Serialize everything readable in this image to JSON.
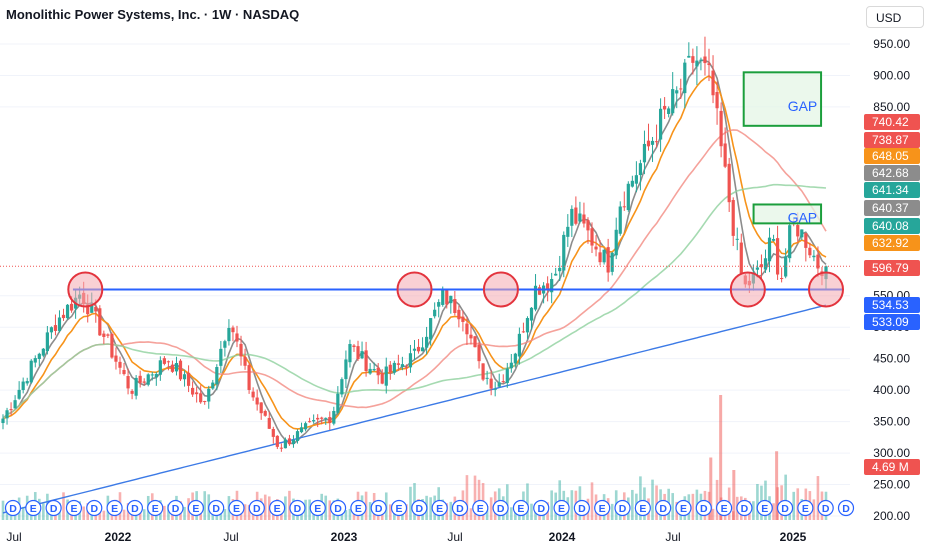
{
  "header": {
    "title": "Monolithic Power Systems, Inc. · 1W · NASDAQ",
    "currency": "USD"
  },
  "colors": {
    "up": "#26a69a",
    "down": "#ef5350",
    "sma_gray": "#8c8c8c",
    "ema_orange": "#f7931a",
    "ma_red": "#f28b82",
    "ma_green": "#8fd19e",
    "ma_blue": "#3c7ae6",
    "support_line": "#2962ff",
    "circle_fill": "#f4a9b0",
    "circle_stroke": "#e3343d",
    "gap_fill": "#e4f5e6",
    "gap_stroke": "#1b9e3c",
    "gap_text": "#2962ff"
  },
  "chart_data": {
    "type": "candlestick",
    "title": "Monolithic Power Systems, Inc. · 1W · NASDAQ",
    "ylim": [
      190,
      975
    ],
    "y_ticks": [
      200,
      250,
      300,
      350,
      400,
      450,
      500,
      550,
      850,
      900,
      950
    ],
    "y_tick_labels": [
      "200.00",
      "250.00",
      "300.00",
      "350.00",
      "400.00",
      "450.00",
      "500.00",
      "550.00",
      "850.00",
      "900.00",
      "950.00"
    ],
    "x_labels": [
      "Jul",
      "2022",
      "Jul",
      "2023",
      "Jul",
      "2024",
      "Jul",
      "2025"
    ],
    "price_waypoints": [
      {
        "t": 0,
        "close": 355
      },
      {
        "t": 0.065,
        "close": 510
      },
      {
        "t": 0.095,
        "close": 555
      },
      {
        "t": 0.125,
        "close": 480
      },
      {
        "t": 0.155,
        "close": 400
      },
      {
        "t": 0.2,
        "close": 450
      },
      {
        "t": 0.245,
        "close": 375
      },
      {
        "t": 0.275,
        "close": 515
      },
      {
        "t": 0.3,
        "close": 400
      },
      {
        "t": 0.335,
        "close": 310
      },
      {
        "t": 0.37,
        "close": 340
      },
      {
        "t": 0.4,
        "close": 360
      },
      {
        "t": 0.42,
        "close": 470
      },
      {
        "t": 0.46,
        "close": 420
      },
      {
        "t": 0.5,
        "close": 455
      },
      {
        "t": 0.535,
        "close": 550
      },
      {
        "t": 0.56,
        "close": 520
      },
      {
        "t": 0.58,
        "close": 430
      },
      {
        "t": 0.6,
        "close": 405
      },
      {
        "t": 0.625,
        "close": 470
      },
      {
        "t": 0.645,
        "close": 560
      },
      {
        "t": 0.67,
        "close": 580
      },
      {
        "t": 0.69,
        "close": 680
      },
      {
        "t": 0.71,
        "close": 650
      },
      {
        "t": 0.735,
        "close": 600
      },
      {
        "t": 0.75,
        "close": 700
      },
      {
        "t": 0.775,
        "close": 760
      },
      {
        "t": 0.8,
        "close": 830
      },
      {
        "t": 0.82,
        "close": 870
      },
      {
        "t": 0.84,
        "close": 930
      },
      {
        "t": 0.86,
        "close": 890
      },
      {
        "t": 0.875,
        "close": 760
      },
      {
        "t": 0.9,
        "close": 560
      },
      {
        "t": 0.92,
        "close": 590
      },
      {
        "t": 0.935,
        "close": 640
      },
      {
        "t": 0.945,
        "close": 575
      },
      {
        "t": 0.955,
        "close": 640
      },
      {
        "t": 0.962,
        "close": 665
      },
      {
        "t": 0.975,
        "close": 640
      },
      {
        "t": 0.99,
        "close": 600
      },
      {
        "t": 1,
        "close": 597
      }
    ],
    "moving_averages": [
      {
        "type": "sma",
        "color_key": "sma_gray",
        "period": 5
      },
      {
        "type": "ema",
        "color_key": "ema_orange",
        "period": 10
      },
      {
        "type": "sma",
        "color_key": "ma_red",
        "period": 30
      },
      {
        "type": "sma",
        "color_key": "ma_green",
        "period": 55
      },
      {
        "type": "sma",
        "color_key": "ma_blue",
        "period": 160
      }
    ],
    "support_level": 560,
    "support_circles": [
      0.1,
      0.5,
      0.605,
      0.905,
      1
    ],
    "gaps": [
      {
        "label": "GAP",
        "low": 820,
        "high": 905
      },
      {
        "label": "GAP",
        "low": 665,
        "high": 695
      }
    ],
    "price_labels": [
      {
        "text": "740.42",
        "color_key": "down"
      },
      {
        "text": "738.87",
        "color_key": "down"
      },
      {
        "text": "648.05",
        "color_key": "ema_orange"
      },
      {
        "text": "642.68",
        "color_key": "sma_gray"
      },
      {
        "text": "641.34",
        "color_key": "up"
      },
      {
        "text": "640.37",
        "color_key": "sma_gray"
      },
      {
        "text": "640.08",
        "color_key": "up"
      },
      {
        "text": "632.92",
        "color_key": "ema_orange"
      },
      {
        "text": "596.79",
        "color_key": "down"
      },
      {
        "text": "534.53",
        "color_key": "support_line"
      },
      {
        "text": "533.09",
        "color_key": "support_line"
      },
      {
        "text": "4.69 M",
        "color_key": "down"
      }
    ],
    "current_price": 596.79,
    "volume_label": "4.69 M",
    "event_badges": [
      "D",
      "E",
      "D",
      "E",
      "D",
      "E",
      "D",
      "E",
      "D",
      "E",
      "D",
      "E",
      "D",
      "E",
      "D",
      "E",
      "D",
      "E",
      "D",
      "E",
      "D",
      "E",
      "D",
      "E",
      "D",
      "E",
      "D",
      "E",
      "D",
      "E",
      "D",
      "E",
      "D",
      "E",
      "D",
      "E",
      "D",
      "E",
      "D",
      "E",
      "D",
      "D"
    ],
    "volume_spikes": [
      {
        "t": 0.872,
        "volume": 10
      },
      {
        "t": 0.86,
        "volume": 5
      },
      {
        "t": 0.888,
        "volume": 4
      },
      {
        "t": 0.94,
        "volume": 5.5
      }
    ]
  }
}
